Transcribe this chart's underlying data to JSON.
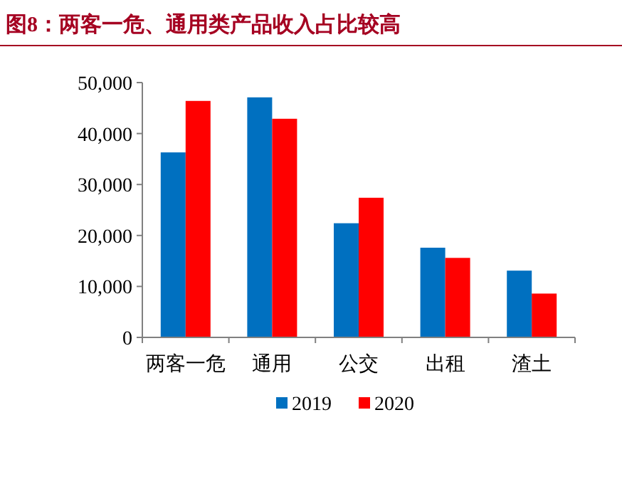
{
  "chart_data": {
    "type": "bar",
    "title": "图8：两客一危、通用类产品收入占比较高",
    "categories": [
      "两客一危",
      "通用",
      "公交",
      "出租",
      "渣土"
    ],
    "series": [
      {
        "name": "2019",
        "color": "#0070c0",
        "values": [
          36300,
          47100,
          22400,
          17600,
          13100
        ]
      },
      {
        "name": "2020",
        "color": "#ff0000",
        "values": [
          46400,
          42900,
          27400,
          15600,
          8600
        ]
      }
    ],
    "ylim": [
      0,
      50000
    ],
    "yticks": [
      {
        "value": 0,
        "label": "0"
      },
      {
        "value": 10000,
        "label": "10,000"
      },
      {
        "value": 20000,
        "label": "20,000"
      },
      {
        "value": 30000,
        "label": "30,000"
      },
      {
        "value": 40000,
        "label": "40,000"
      },
      {
        "value": 50000,
        "label": "50,000"
      }
    ],
    "grid": false,
    "legend": "bottom"
  }
}
